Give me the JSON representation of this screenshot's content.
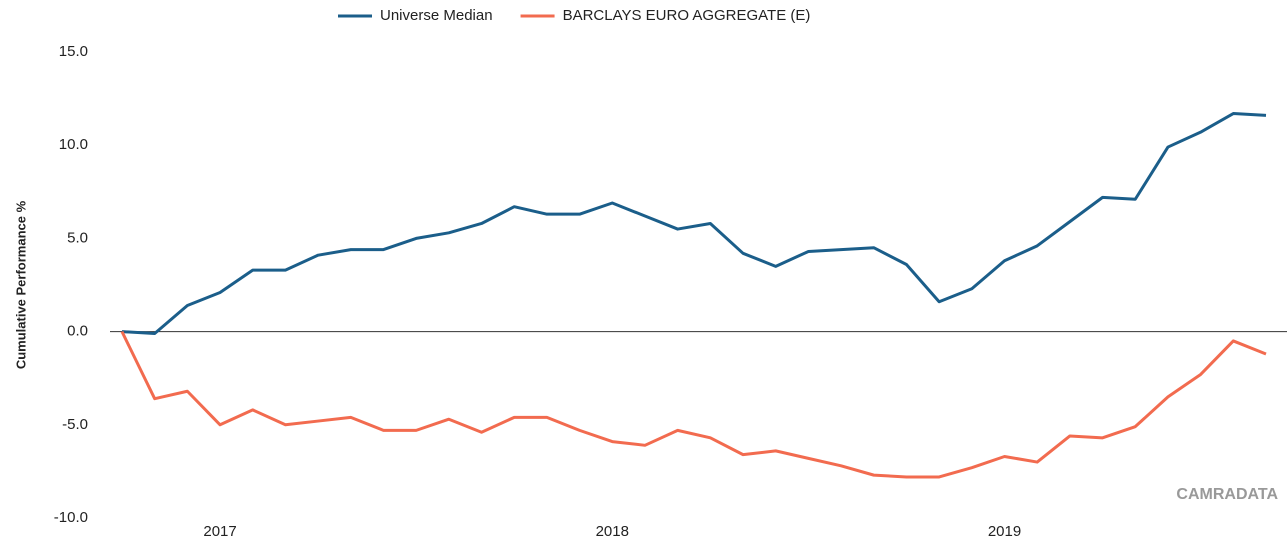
{
  "chart_data": {
    "type": "line",
    "y_label": "Cumulative Performance %",
    "watermark": "CAMRADATA",
    "categories": [
      null,
      null,
      null,
      "2017",
      null,
      null,
      null,
      null,
      null,
      null,
      null,
      null,
      null,
      null,
      null,
      "2018",
      null,
      null,
      null,
      null,
      null,
      null,
      null,
      null,
      null,
      null,
      null,
      "2019",
      null,
      null,
      null,
      null,
      null,
      null,
      null,
      null
    ],
    "series": [
      {
        "name": "Universe Median",
        "color": "#1b5e8a",
        "values": [
          0,
          -0.1,
          1.4,
          2.1,
          3.3,
          3.3,
          4.1,
          4.4,
          4.4,
          5.0,
          5.3,
          5.8,
          6.7,
          6.3,
          6.3,
          6.9,
          6.2,
          5.5,
          5.8,
          4.2,
          3.5,
          4.3,
          4.4,
          4.5,
          3.6,
          1.6,
          2.3,
          3.8,
          4.6,
          5.9,
          7.2,
          7.1,
          9.9,
          10.7,
          11.7,
          11.6
        ]
      },
      {
        "name": "BARCLAYS EURO AGGREGATE (E)",
        "color": "#f26b4f",
        "values": [
          0,
          -3.6,
          -3.2,
          -5.0,
          -4.2,
          -5.0,
          -4.8,
          -4.6,
          -5.3,
          -5.3,
          -4.7,
          -5.4,
          -4.6,
          -4.6,
          -5.3,
          -5.9,
          -6.1,
          -5.3,
          -5.7,
          -6.6,
          -6.4,
          -6.8,
          -7.2,
          -7.7,
          -7.8,
          -7.8,
          -7.3,
          -6.7,
          -7.0,
          -5.6,
          -5.7,
          -5.1,
          -3.5,
          -2.3,
          -0.5,
          -1.2
        ]
      }
    ],
    "ylim": [
      -10,
      15
    ],
    "yticks": [
      {
        "value": -10,
        "label": "-10.0"
      },
      {
        "value": -5,
        "label": "-5.0"
      },
      {
        "value": 0,
        "label": "0.0"
      },
      {
        "value": 5,
        "label": "5.0"
      },
      {
        "value": 10,
        "label": "10.0"
      },
      {
        "value": 15,
        "label": "15.0"
      }
    ],
    "grid": false,
    "legend": "top"
  }
}
